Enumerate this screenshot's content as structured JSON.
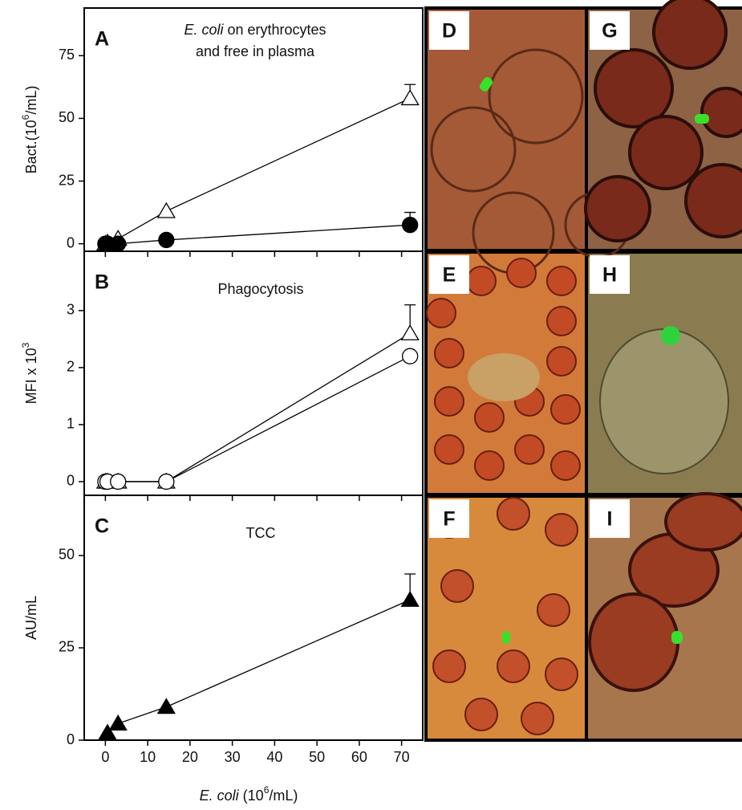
{
  "chart_data": [
    {
      "type": "line",
      "panel_label": "A",
      "title_parts": [
        "E. coli",
        " on erythrocytes",
        "and free in plasma"
      ],
      "ylabel_parts": [
        "Bact.(10",
        "6",
        "/mL)"
      ],
      "x": [
        0,
        0.5,
        3,
        14.4,
        72
      ],
      "series": [
        {
          "marker": "triangle-open",
          "color": "#000000",
          "values": [
            0,
            0.5,
            2,
            13,
            58
          ],
          "errors": [
            null,
            null,
            null,
            null,
            5.5
          ]
        },
        {
          "marker": "circle-filled",
          "color": "#000000",
          "values": [
            0,
            0,
            0,
            1.5,
            7.5
          ],
          "errors": [
            null,
            null,
            null,
            null,
            5
          ]
        }
      ],
      "xlim": [
        -5,
        75
      ],
      "xticks": [
        0,
        10,
        20,
        30,
        40,
        50,
        60,
        70
      ],
      "xtick_labels": false,
      "ylim": [
        -3,
        94
      ],
      "yticks": [
        0,
        25,
        50,
        75
      ]
    },
    {
      "type": "line",
      "panel_label": "B",
      "title_parts": [
        "Phagocytosis"
      ],
      "ylabel_parts": [
        "MFI x 10",
        "3"
      ],
      "x": [
        0,
        0.5,
        3,
        14.4,
        72
      ],
      "series": [
        {
          "marker": "triangle-open",
          "color": "#000000",
          "values": [
            0,
            0,
            0,
            0,
            2.6
          ],
          "errors": [
            null,
            null,
            null,
            null,
            0.5
          ]
        },
        {
          "marker": "circle-open",
          "color": "#000000",
          "values": [
            0,
            0,
            0,
            0,
            2.2
          ],
          "errors": [
            null,
            null,
            null,
            null,
            null
          ]
        }
      ],
      "xlim": [
        -5,
        75
      ],
      "xticks": [
        0,
        10,
        20,
        30,
        40,
        50,
        60,
        70
      ],
      "xtick_labels": false,
      "ylim": [
        -0.24,
        4.04
      ],
      "yticks": [
        0,
        1,
        2,
        3
      ]
    },
    {
      "type": "line",
      "panel_label": "C",
      "title_parts": [
        "TCC"
      ],
      "ylabel_parts": [
        "AU/mL"
      ],
      "xlabel_parts": [
        "E. coli",
        " (10",
        "6",
        "/mL)"
      ],
      "x": [
        0,
        0.5,
        3,
        14.4,
        72
      ],
      "series": [
        {
          "marker": "triangle-filled",
          "color": "#000000",
          "values": [
            1,
            2,
            4.5,
            9,
            38
          ],
          "errors": [
            null,
            null,
            null,
            null,
            7
          ]
        }
      ],
      "xlim": [
        -5,
        75
      ],
      "xticks": [
        0,
        10,
        20,
        30,
        40,
        50,
        60,
        70
      ],
      "xtick_labels": true,
      "ylim": [
        0,
        66.3
      ],
      "yticks": [
        0,
        25,
        50
      ]
    }
  ],
  "image_panels": [
    {
      "label": "D"
    },
    {
      "label": "G"
    },
    {
      "label": "E"
    },
    {
      "label": "H"
    },
    {
      "label": "F"
    },
    {
      "label": "I"
    }
  ]
}
